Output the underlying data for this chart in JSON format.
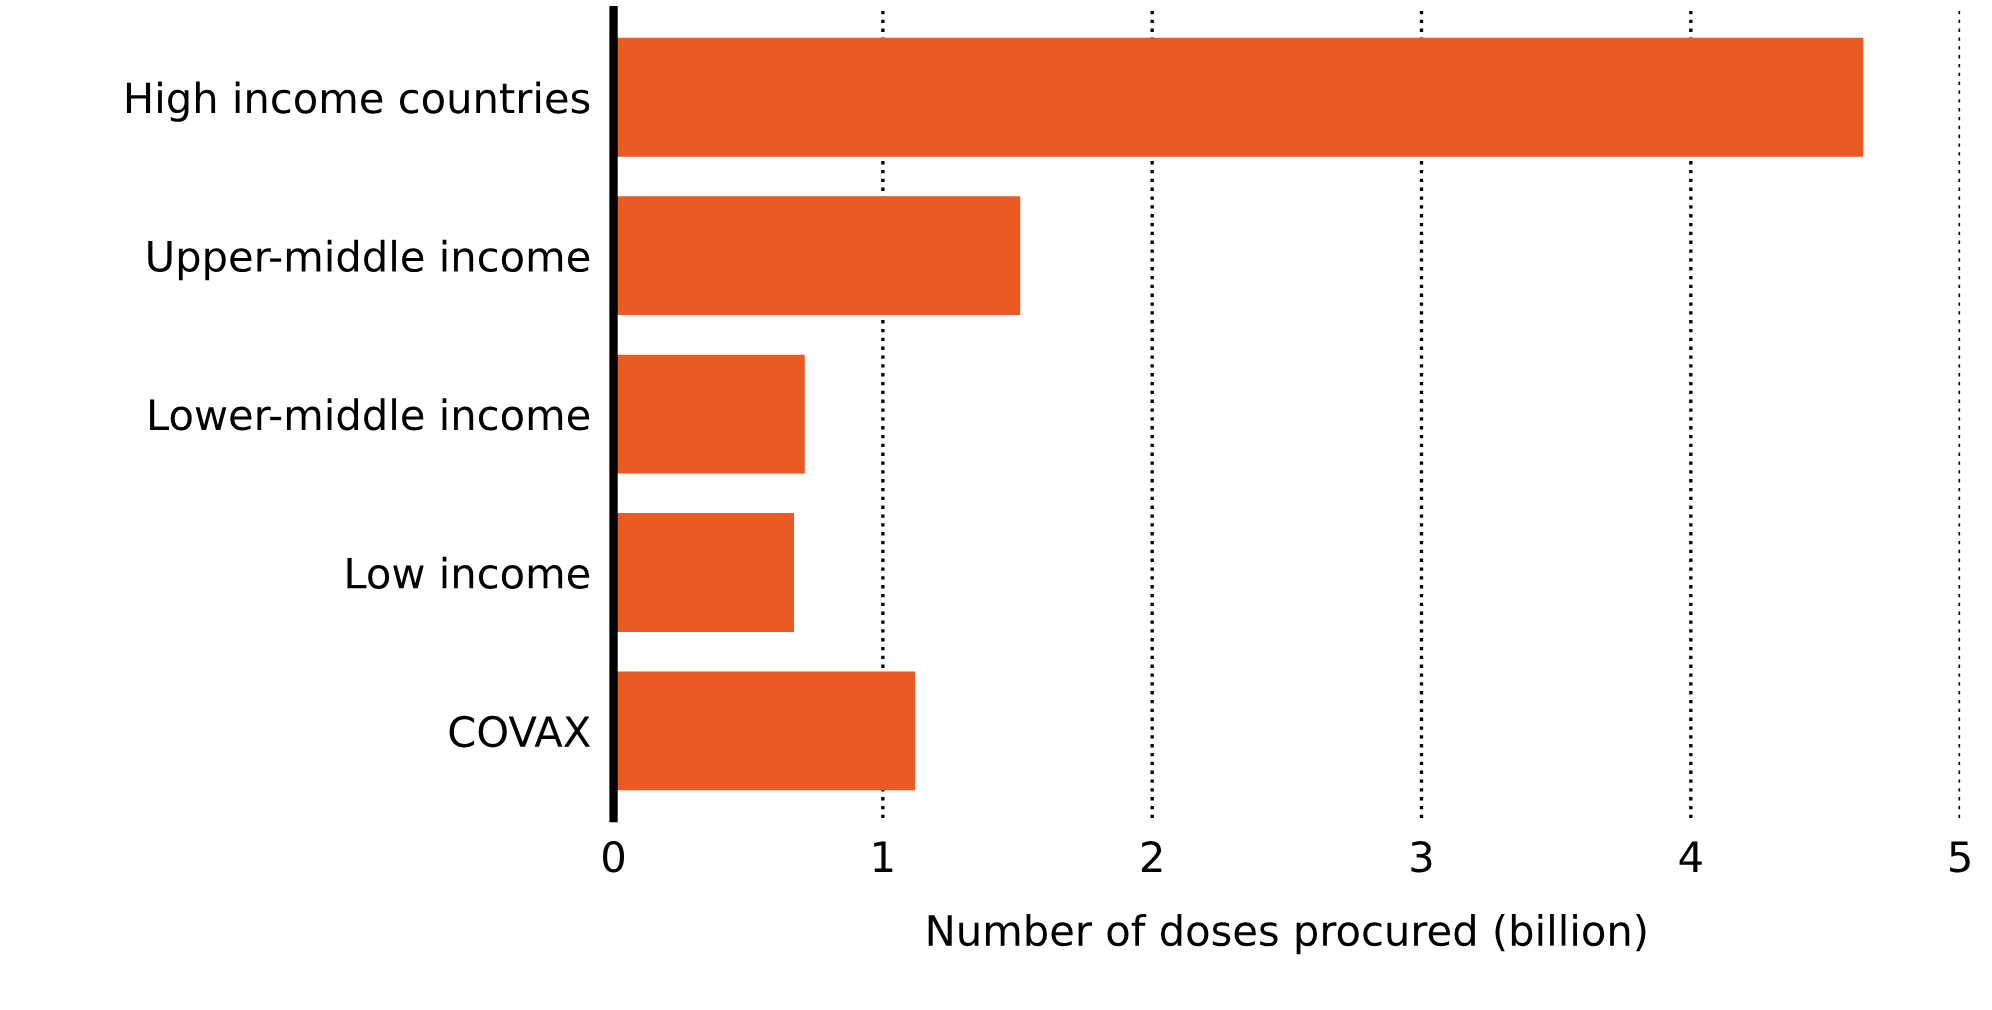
{
  "chart_data": {
    "type": "bar",
    "orientation": "horizontal",
    "xlabel": "Number of doses procured (billion)",
    "categories": [
      "High income countries",
      "Upper-middle income",
      "Lower-middle income",
      "Low income",
      "COVAX"
    ],
    "values": [
      4.64,
      1.51,
      0.71,
      0.67,
      1.12
    ],
    "color": "#e95a24",
    "xlim": [
      0,
      5
    ],
    "xticks": [
      0,
      1,
      2,
      3,
      4,
      5
    ],
    "grid": "x",
    "line_style": "dotted"
  }
}
